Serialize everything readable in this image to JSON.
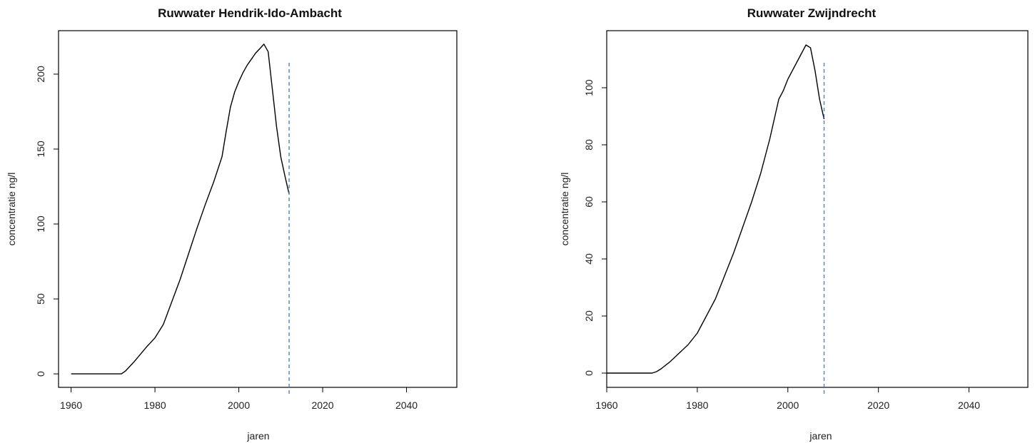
{
  "chart_data": [
    {
      "type": "line",
      "title": "Ruwwater Hendrik-Ido-Ambacht",
      "xlabel": "jaren",
      "ylabel": "concentratie ng/l",
      "xlim": [
        1957,
        2052
      ],
      "ylim": [
        -9,
        229
      ],
      "x_ticks": [
        1960,
        1980,
        2000,
        2020,
        2040
      ],
      "y_ticks": [
        0,
        50,
        100,
        150,
        200
      ],
      "grid": false,
      "series": [
        {
          "color": "#000000",
          "x": [
            1960,
            1965,
            1970,
            1972,
            1973,
            1975,
            1978,
            1980,
            1982,
            1984,
            1986,
            1988,
            1990,
            1992,
            1994,
            1996,
            1997,
            1998,
            1999,
            2000,
            2001,
            2002,
            2003,
            2004,
            2005,
            2006,
            2007,
            2008,
            2009,
            2010,
            2011,
            2012
          ],
          "y": [
            0,
            0,
            0,
            0,
            2,
            8,
            18,
            24,
            33,
            48,
            63,
            80,
            97,
            113,
            128,
            145,
            162,
            178,
            188,
            195,
            201,
            206,
            210,
            214,
            217,
            220,
            215,
            190,
            165,
            145,
            132,
            120
          ]
        }
      ],
      "vline": {
        "x": 2012,
        "color": "#4f81c7",
        "style": "dashed"
      }
    },
    {
      "type": "line",
      "title": "Ruwwater Zwijndrecht",
      "xlabel": "jaren",
      "ylabel": "concentratie ng/l",
      "xlim": [
        1960,
        2053
      ],
      "ylim": [
        -5,
        120
      ],
      "x_ticks": [
        1960,
        1980,
        2000,
        2020,
        2040
      ],
      "y_ticks": [
        0,
        20,
        40,
        60,
        80,
        100
      ],
      "grid": false,
      "series": [
        {
          "color": "#000000",
          "x": [
            1960,
            1965,
            1970,
            1971,
            1972,
            1974,
            1976,
            1978,
            1980,
            1982,
            1984,
            1986,
            1988,
            1990,
            1992,
            1994,
            1996,
            1997,
            1998,
            1999,
            2000,
            2001,
            2002,
            2003,
            2004,
            2005,
            2006,
            2007,
            2008
          ],
          "y": [
            0,
            0,
            0,
            0.5,
            1.5,
            4,
            7,
            10,
            14,
            20,
            26,
            34,
            42,
            51,
            60,
            70,
            82,
            89,
            96,
            99,
            103,
            106,
            109,
            112,
            115,
            114,
            106,
            96,
            89
          ]
        }
      ],
      "vline": {
        "x": 2008,
        "color": "#4f81c7",
        "style": "dashed"
      }
    }
  ]
}
